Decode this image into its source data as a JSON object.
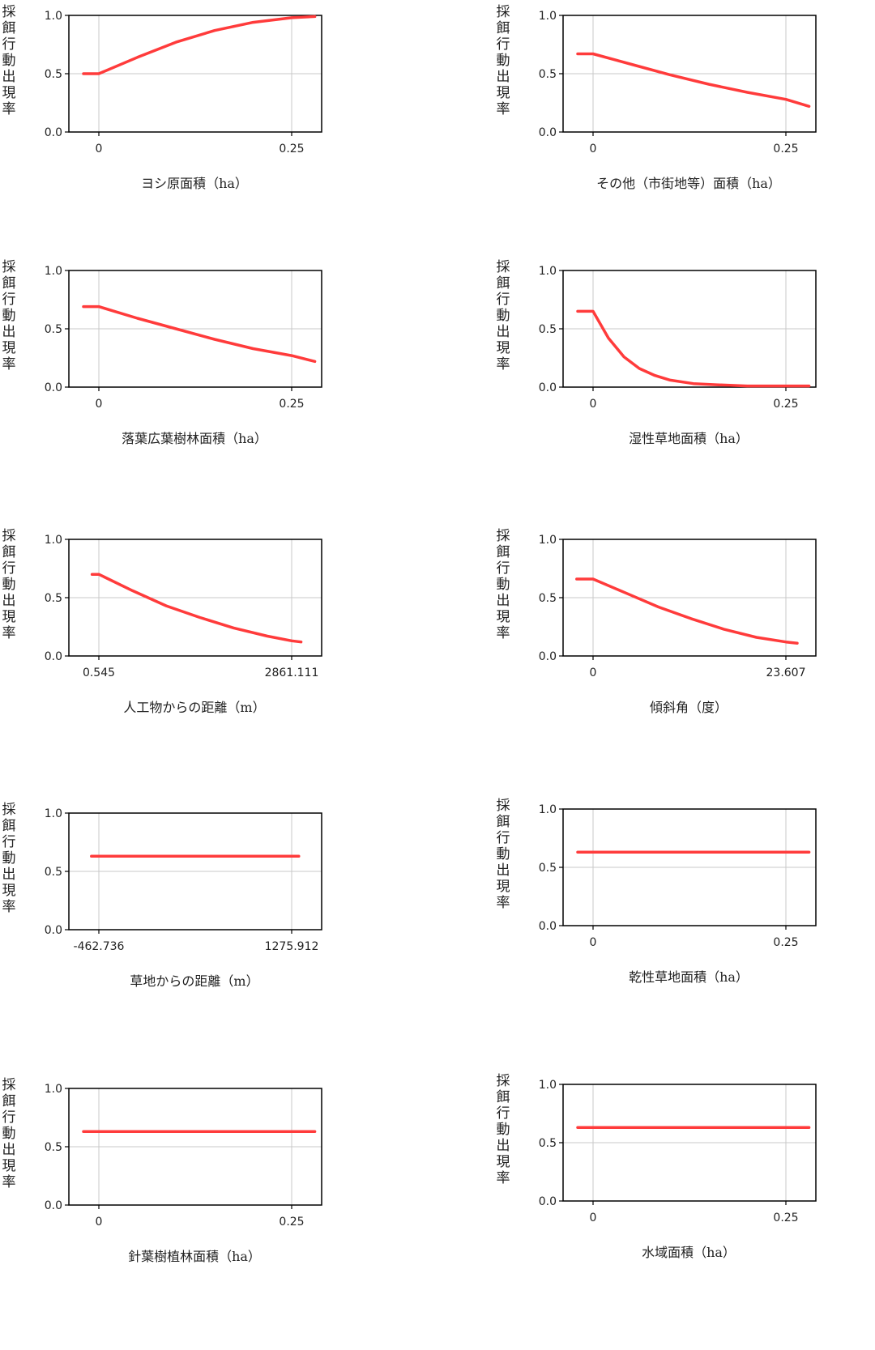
{
  "chart_data": [
    {
      "type": "line",
      "ylabel": "採餌行動出現率",
      "xlabel": "ヨシ原面積（ha）",
      "xticks": [
        "0",
        "0.25"
      ],
      "yticks": [
        "0.0",
        "0.5",
        "1.0"
      ],
      "ylim": [
        0,
        1
      ],
      "x": [
        -0.02,
        0,
        0.05,
        0.1,
        0.15,
        0.2,
        0.25,
        0.28
      ],
      "y": [
        0.5,
        0.5,
        0.64,
        0.77,
        0.87,
        0.94,
        0.98,
        0.99
      ]
    },
    {
      "type": "line",
      "ylabel": "採餌行動出現率",
      "xlabel": "その他（市街地等）面積（ha）",
      "xticks": [
        "0",
        "0.25"
      ],
      "yticks": [
        "0.0",
        "0.5",
        "1.0"
      ],
      "ylim": [
        0,
        1
      ],
      "x": [
        -0.02,
        0,
        0.05,
        0.1,
        0.15,
        0.2,
        0.25,
        0.28
      ],
      "y": [
        0.67,
        0.67,
        0.58,
        0.49,
        0.41,
        0.34,
        0.28,
        0.22
      ]
    },
    {
      "type": "line",
      "ylabel": "採餌行動出現率",
      "xlabel": "落葉広葉樹林面積（ha）",
      "xticks": [
        "0",
        "0.25"
      ],
      "yticks": [
        "0.0",
        "0.5",
        "1.0"
      ],
      "ylim": [
        0,
        1
      ],
      "x": [
        -0.02,
        0,
        0.05,
        0.1,
        0.15,
        0.2,
        0.25,
        0.28
      ],
      "y": [
        0.69,
        0.69,
        0.59,
        0.5,
        0.41,
        0.33,
        0.27,
        0.22
      ]
    },
    {
      "type": "line",
      "ylabel": "採餌行動出現率",
      "xlabel": "湿性草地面積（ha）",
      "xticks": [
        "0",
        "0.25"
      ],
      "yticks": [
        "0.0",
        "0.5",
        "1.0"
      ],
      "ylim": [
        0,
        1
      ],
      "x": [
        -0.02,
        0,
        0.02,
        0.04,
        0.06,
        0.08,
        0.1,
        0.13,
        0.16,
        0.2,
        0.25,
        0.28
      ],
      "y": [
        0.65,
        0.65,
        0.42,
        0.26,
        0.16,
        0.1,
        0.06,
        0.03,
        0.02,
        0.01,
        0.01,
        0.01
      ]
    },
    {
      "type": "line",
      "ylabel": "採餌行動出現率",
      "xlabel": "人工物からの距離（m）",
      "xticks": [
        "0.545",
        "2861.111"
      ],
      "yticks": [
        "0.0",
        "0.5",
        "1.0"
      ],
      "ylim": [
        0,
        1
      ],
      "x": [
        -100,
        0.545,
        500,
        1000,
        1500,
        2000,
        2500,
        2861.111,
        3000
      ],
      "y": [
        0.7,
        0.7,
        0.56,
        0.43,
        0.33,
        0.24,
        0.17,
        0.13,
        0.12
      ]
    },
    {
      "type": "line",
      "ylabel": "採餌行動出現率",
      "xlabel": "傾斜角（度）",
      "xticks": [
        "0",
        "23.607"
      ],
      "yticks": [
        "0.0",
        "0.5",
        "1.0"
      ],
      "ylim": [
        0,
        1
      ],
      "x": [
        -2,
        0,
        4,
        8,
        12,
        16,
        20,
        23.607,
        25
      ],
      "y": [
        0.66,
        0.66,
        0.54,
        0.42,
        0.32,
        0.23,
        0.16,
        0.12,
        0.11
      ]
    },
    {
      "type": "line",
      "ylabel": "採餌行動出現率",
      "xlabel": "草地からの距離（m）",
      "xticks": [
        "-462.736",
        "1275.912"
      ],
      "yticks": [
        "0.0",
        "0.5",
        "1.0"
      ],
      "ylim": [
        0,
        1
      ],
      "x": [
        -530,
        1340
      ],
      "y": [
        0.63,
        0.63
      ]
    },
    {
      "type": "line",
      "ylabel": "採餌行動出現率",
      "xlabel": "乾性草地面積（ha）",
      "xticks": [
        "0",
        "0.25"
      ],
      "yticks": [
        "0.0",
        "0.5",
        "1.0"
      ],
      "ylim": [
        0,
        1
      ],
      "x": [
        -0.02,
        0.28
      ],
      "y": [
        0.63,
        0.63
      ]
    },
    {
      "type": "line",
      "ylabel": "採餌行動出現率",
      "xlabel": "針葉樹植林面積（ha）",
      "xticks": [
        "0",
        "0.25"
      ],
      "yticks": [
        "0.0",
        "0.5",
        "1.0"
      ],
      "ylim": [
        0,
        1
      ],
      "x": [
        -0.02,
        0.28
      ],
      "y": [
        0.63,
        0.63
      ]
    },
    {
      "type": "line",
      "ylabel": "採餌行動出現率",
      "xlabel": "水域面積（ha）",
      "xticks": [
        "0",
        "0.25"
      ],
      "yticks": [
        "0.0",
        "0.5",
        "1.0"
      ],
      "ylim": [
        0,
        1
      ],
      "x": [
        -0.02,
        0.28
      ],
      "y": [
        0.63,
        0.63
      ]
    }
  ]
}
